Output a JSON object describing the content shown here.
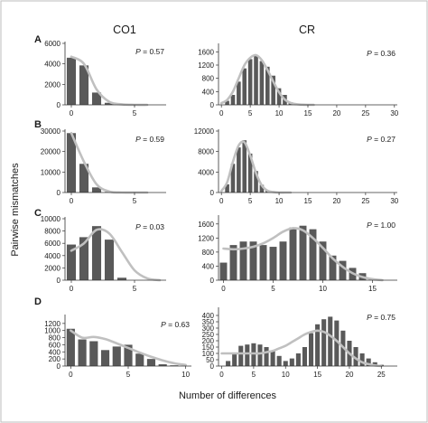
{
  "figure": {
    "column_titles": [
      "CO1",
      "CR"
    ],
    "row_labels": [
      "A",
      "B",
      "C",
      "D"
    ],
    "ylabel": "Pairwise mismatches",
    "xlabel": "Number of differences",
    "colors": {
      "bars": "#595959",
      "curve": "#c0c0c0",
      "axis": "#333333",
      "border": "#bdbdbd"
    }
  },
  "chart_data": [
    {
      "panel": "A-CO1",
      "type": "bar",
      "x": [
        0,
        1,
        2,
        3,
        4
      ],
      "values": [
        4600,
        3850,
        1200,
        200,
        50
      ],
      "expected": [
        4700,
        4000,
        1500,
        300,
        50,
        0,
        0
      ],
      "p_label": "P",
      "p_value": "= 0.57",
      "xlim": [
        -0.5,
        7.5
      ],
      "ylim": [
        0,
        6000
      ],
      "xticks": [
        0,
        5
      ],
      "yticks": [
        0,
        2000,
        4000,
        6000
      ]
    },
    {
      "panel": "A-CR",
      "type": "bar",
      "x": [
        1,
        2,
        3,
        4,
        5,
        6,
        7,
        8,
        9,
        10,
        11,
        12,
        13,
        14,
        15
      ],
      "values": [
        120,
        300,
        700,
        1100,
        1380,
        1480,
        1320,
        1150,
        880,
        500,
        300,
        80,
        40,
        20,
        10
      ],
      "expected": [
        50,
        150,
        400,
        800,
        1200,
        1420,
        1500,
        1350,
        1050,
        700,
        380,
        160,
        60,
        20,
        5,
        0,
        0
      ],
      "p_label": "P",
      "p_value": "= 0.36",
      "xlim": [
        -0.5,
        30.5
      ],
      "ylim": [
        0,
        1800
      ],
      "xticks": [
        0,
        5,
        10,
        15,
        20,
        25,
        30
      ],
      "yticks": [
        0,
        400,
        800,
        1200,
        1600
      ]
    },
    {
      "panel": "B-CO1",
      "type": "bar",
      "x": [
        0,
        1,
        2,
        3
      ],
      "values": [
        29000,
        14000,
        2500,
        300
      ],
      "expected": [
        29000,
        15000,
        4000,
        500,
        0,
        0,
        0
      ],
      "p_label": "P",
      "p_value": "= 0.59",
      "xlim": [
        -0.5,
        7.5
      ],
      "ylim": [
        0,
        30000
      ],
      "xticks": [
        0,
        5
      ],
      "yticks": [
        0,
        10000,
        20000,
        30000
      ]
    },
    {
      "panel": "B-CR",
      "type": "bar",
      "x": [
        1,
        2,
        3,
        4,
        5,
        6,
        7,
        8,
        9
      ],
      "values": [
        1600,
        5600,
        8800,
        10200,
        7600,
        4200,
        1500,
        400,
        100
      ],
      "expected": [
        300,
        2000,
        6000,
        9200,
        9800,
        7200,
        3800,
        1400,
        350,
        100,
        0,
        0,
        0
      ],
      "p_label": "P",
      "p_value": "= 0.27",
      "xlim": [
        -0.5,
        30.5
      ],
      "ylim": [
        0,
        12000
      ],
      "xticks": [
        0,
        5,
        10,
        15,
        20,
        25,
        30
      ],
      "yticks": [
        0,
        4000,
        8000,
        12000
      ]
    },
    {
      "panel": "C-CO1",
      "type": "bar",
      "x": [
        0,
        1,
        2,
        3,
        4
      ],
      "values": [
        5800,
        7000,
        8800,
        6600,
        400
      ],
      "expected": [
        4800,
        6000,
        8200,
        7600,
        4600,
        1600,
        300,
        0
      ],
      "p_label": "P",
      "p_value": "= 0.03",
      "xlim": [
        -0.5,
        7.5
      ],
      "ylim": [
        0,
        10000
      ],
      "xticks": [
        0,
        5
      ],
      "yticks": [
        0,
        2000,
        4000,
        6000,
        8000,
        10000
      ]
    },
    {
      "panel": "C-CR",
      "type": "bar",
      "x": [
        0,
        1,
        2,
        3,
        4,
        5,
        6,
        7,
        8,
        9,
        10,
        11,
        12,
        13,
        14,
        15
      ],
      "values": [
        500,
        1000,
        1100,
        1100,
        1000,
        950,
        1100,
        1500,
        1550,
        1450,
        1100,
        700,
        550,
        350,
        200,
        50
      ],
      "expected": [
        900,
        880,
        900,
        950,
        1050,
        1200,
        1380,
        1480,
        1420,
        1200,
        920,
        620,
        380,
        200,
        90,
        30,
        0
      ],
      "p_label": "P",
      "p_value": "= 1.00",
      "xlim": [
        -0.5,
        17.5
      ],
      "ylim": [
        0,
        1800
      ],
      "xticks": [
        0,
        5,
        10,
        15
      ],
      "yticks": [
        0,
        400,
        800,
        1200,
        1600
      ]
    },
    {
      "panel": "D-CO1",
      "type": "bar",
      "x": [
        0,
        1,
        2,
        3,
        4,
        5,
        6,
        7,
        8,
        9
      ],
      "values": [
        1050,
        750,
        700,
        450,
        550,
        600,
        350,
        200,
        50,
        20
      ],
      "expected": [
        1000,
        800,
        820,
        760,
        640,
        510,
        380,
        260,
        160,
        80,
        30
      ],
      "p_label": "P",
      "p_value": "= 0.63",
      "xlim": [
        -0.5,
        10.5
      ],
      "ylim": [
        0,
        1400
      ],
      "xticks": [
        0,
        5,
        10
      ],
      "yticks": [
        0,
        200,
        400,
        600,
        800,
        1000,
        1200
      ]
    },
    {
      "panel": "D-CR",
      "type": "bar",
      "x": [
        1,
        2,
        3,
        4,
        5,
        6,
        7,
        8,
        9,
        10,
        11,
        12,
        13,
        14,
        15,
        16,
        17,
        18,
        19,
        20,
        21,
        22,
        23,
        24,
        25
      ],
      "values": [
        40,
        100,
        160,
        170,
        180,
        170,
        150,
        120,
        80,
        40,
        60,
        100,
        150,
        260,
        330,
        370,
        390,
        360,
        280,
        200,
        150,
        100,
        60,
        30,
        10
      ],
      "expected": [
        100,
        100,
        100,
        100,
        100,
        100,
        100,
        110,
        120,
        140,
        160,
        190,
        220,
        250,
        270,
        280,
        270,
        240,
        200,
        150,
        100,
        60,
        30,
        15,
        5,
        0
      ],
      "p_label": "P",
      "p_value": "= 0.75",
      "xlim": [
        -0.5,
        27.5
      ],
      "ylim": [
        0,
        450
      ],
      "xticks": [
        0,
        5,
        10,
        15,
        20,
        25
      ],
      "yticks": [
        0,
        50,
        100,
        150,
        200,
        250,
        300,
        350,
        400
      ]
    }
  ]
}
